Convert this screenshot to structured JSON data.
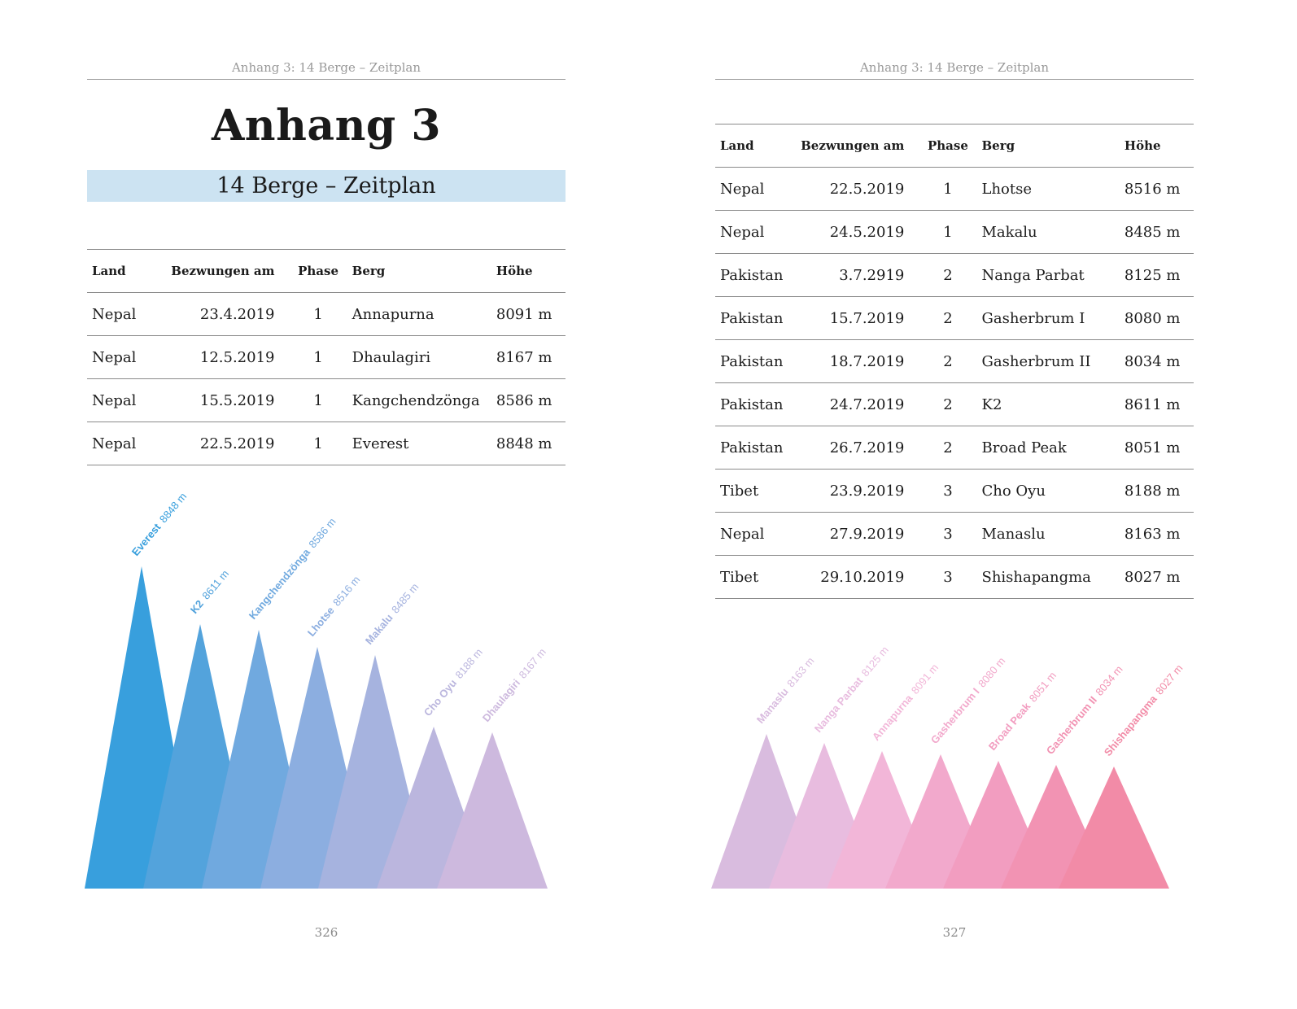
{
  "left_page": {
    "running_head": "Anhang 3: 14 Berge – Zeitplan",
    "title": "Anhang 3",
    "subtitle": "14 Berge – Zeitplan",
    "table": {
      "headers": [
        "Land",
        "Bezwungen am",
        "Phase",
        "Berg",
        "Höhe"
      ],
      "rows": [
        [
          "Nepal",
          "23.4.2019",
          "1",
          "Annapurna",
          "8091 m"
        ],
        [
          "Nepal",
          "12.5.2019",
          "1",
          "Dhaulagiri",
          "8167 m"
        ],
        [
          "Nepal",
          "15.5.2019",
          "1",
          "Kangchendzönga",
          "8586 m"
        ],
        [
          "Nepal",
          "22.5.2019",
          "1",
          "Everest",
          "8848 m"
        ]
      ]
    },
    "mountains": [
      {
        "name": "Everest",
        "height": "8848 m",
        "color": "#389fdd"
      },
      {
        "name": "K2",
        "height": "8611 m",
        "color": "#53a3dc"
      },
      {
        "name": "Kangchendzönga",
        "height": "8586 m",
        "color": "#70a9df"
      },
      {
        "name": "Lhotse",
        "height": "8516 m",
        "color": "#8caee0"
      },
      {
        "name": "Makalu",
        "height": "8485 m",
        "color": "#a6b3df"
      },
      {
        "name": "Cho Oyu",
        "height": "8188 m",
        "color": "#bbb6de"
      },
      {
        "name": "Dhaulagiri",
        "height": "8167 m",
        "color": "#cdb9de"
      }
    ],
    "folio": "326"
  },
  "right_page": {
    "running_head": "Anhang 3: 14 Berge – Zeitplan",
    "table": {
      "headers": [
        "Land",
        "Bezwungen am",
        "Phase",
        "Berg",
        "Höhe"
      ],
      "rows": [
        [
          "Nepal",
          "22.5.2019",
          "1",
          "Lhotse",
          "8516 m"
        ],
        [
          "Nepal",
          "24.5.2019",
          "1",
          "Makalu",
          "8485 m"
        ],
        [
          "Pakistan",
          "3.7.2919",
          "2",
          "Nanga Parbat",
          "8125 m"
        ],
        [
          "Pakistan",
          "15.7.2019",
          "2",
          "Gasherbrum I",
          "8080 m"
        ],
        [
          "Pakistan",
          "18.7.2019",
          "2",
          "Gasherbrum II",
          "8034 m"
        ],
        [
          "Pakistan",
          "24.7.2019",
          "2",
          "K2",
          "8611 m"
        ],
        [
          "Pakistan",
          "26.7.2019",
          "2",
          "Broad Peak",
          "8051 m"
        ],
        [
          "Tibet",
          "23.9.2019",
          "3",
          "Cho Oyu",
          "8188 m"
        ],
        [
          "Nepal",
          "27.9.2019",
          "3",
          "Manaslu",
          "8163 m"
        ],
        [
          "Tibet",
          "29.10.2019",
          "3",
          "Shishapangma",
          "8027 m"
        ]
      ]
    },
    "mountains": [
      {
        "name": "Manaslu",
        "height": "8163 m",
        "color": "#d9bcdf"
      },
      {
        "name": "Nanga Parbat",
        "height": "8125 m",
        "color": "#e8bcdf"
      },
      {
        "name": "Annapurna",
        "height": "8091 m",
        "color": "#f2b6d8"
      },
      {
        "name": "Gasherbrum I",
        "height": "8080 m",
        "color": "#f2a9cc"
      },
      {
        "name": "Broad Peak",
        "height": "8051 m",
        "color": "#f29dc0"
      },
      {
        "name": "Gasherbrum II",
        "height": "8034 m",
        "color": "#f293b3"
      },
      {
        "name": "Shishapangma",
        "height": "8027 m",
        "color": "#f28ba7"
      }
    ],
    "folio": "327"
  }
}
